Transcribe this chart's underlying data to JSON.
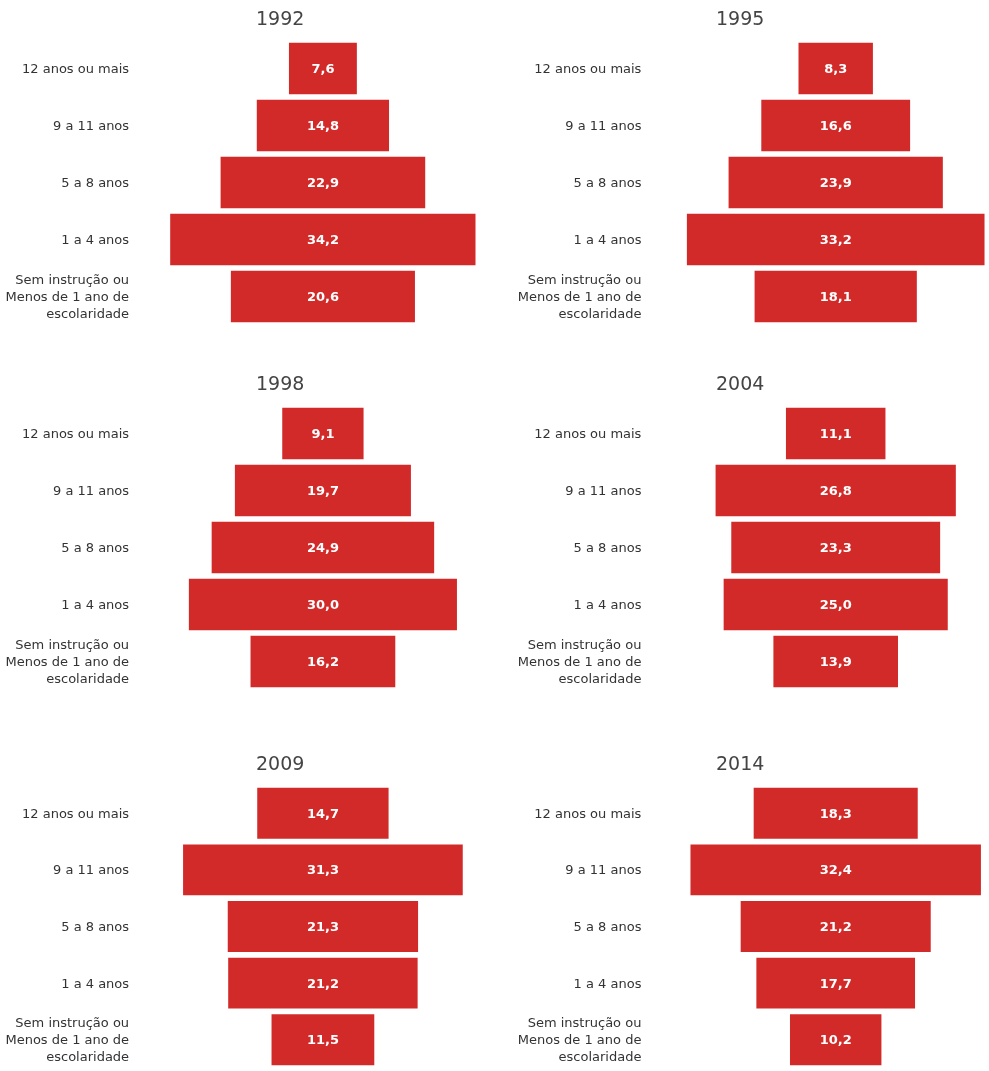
{
  "chart_data": [
    {
      "type": "other",
      "title": "1992",
      "categories": [
        "12 anos ou mais",
        "9 a 11 anos",
        "5 a 8 anos",
        "1 a 4 anos",
        "Sem instrução ou\nMenos de 1 ano de\nescolaridade"
      ],
      "values": [
        7.6,
        14.8,
        22.9,
        34.2,
        20.6
      ],
      "value_labels": [
        "7,6",
        "14,8",
        "22,9",
        "34,2",
        "20,6"
      ],
      "color": "#d22a29"
    },
    {
      "type": "other",
      "title": "1995",
      "categories": [
        "12 anos ou mais",
        "9 a 11 anos",
        "5 a 8 anos",
        "1 a 4 anos",
        "Sem instrução ou\nMenos de 1 ano de\nescolaridade"
      ],
      "values": [
        8.3,
        16.6,
        23.9,
        33.2,
        18.1
      ],
      "value_labels": [
        "8,3",
        "16,6",
        "23,9",
        "33,2",
        "18,1"
      ],
      "color": "#d22a29"
    },
    {
      "type": "other",
      "title": "1998",
      "categories": [
        "12 anos ou mais",
        "9 a 11 anos",
        "5 a 8 anos",
        "1 a 4 anos",
        "Sem instrução ou\nMenos de 1 ano de\nescolaridade"
      ],
      "values": [
        9.1,
        19.7,
        24.9,
        30.0,
        16.2
      ],
      "value_labels": [
        "9,1",
        "19,7",
        "24,9",
        "30,0",
        "16,2"
      ],
      "color": "#d22a29"
    },
    {
      "type": "other",
      "title": "2004",
      "categories": [
        "12 anos ou mais",
        "9 a 11 anos",
        "5 a 8 anos",
        "1 a 4 anos",
        "Sem instrução ou\nMenos de 1 ano de\nescolaridade"
      ],
      "values": [
        11.1,
        26.8,
        23.3,
        25.0,
        13.9
      ],
      "value_labels": [
        "11,1",
        "26,8",
        "23,3",
        "25,0",
        "13,9"
      ],
      "color": "#d22a29"
    },
    {
      "type": "other",
      "title": "2009",
      "categories": [
        "12 anos ou mais",
        "9 a 11 anos",
        "5 a 8 anos",
        "1 a 4 anos",
        "Sem instrução ou\nMenos de 1 ano de\nescolaridade"
      ],
      "values": [
        14.7,
        31.3,
        21.3,
        21.2,
        11.5
      ],
      "value_labels": [
        "14,7",
        "31,3",
        "21,3",
        "21,2",
        "11,5"
      ],
      "color": "#d22a29"
    },
    {
      "type": "other",
      "title": "2014",
      "categories": [
        "12 anos ou mais",
        "9 a 11 anos",
        "5 a 8 anos",
        "1 a 4 anos",
        "Sem instrução ou\nMenos de 1 ano de\nescolaridade"
      ],
      "values": [
        18.3,
        32.4,
        21.2,
        17.7,
        10.2
      ],
      "value_labels": [
        "18,3",
        "32,4",
        "21,2",
        "17,7",
        "10,2"
      ],
      "color": "#d22a29"
    }
  ]
}
